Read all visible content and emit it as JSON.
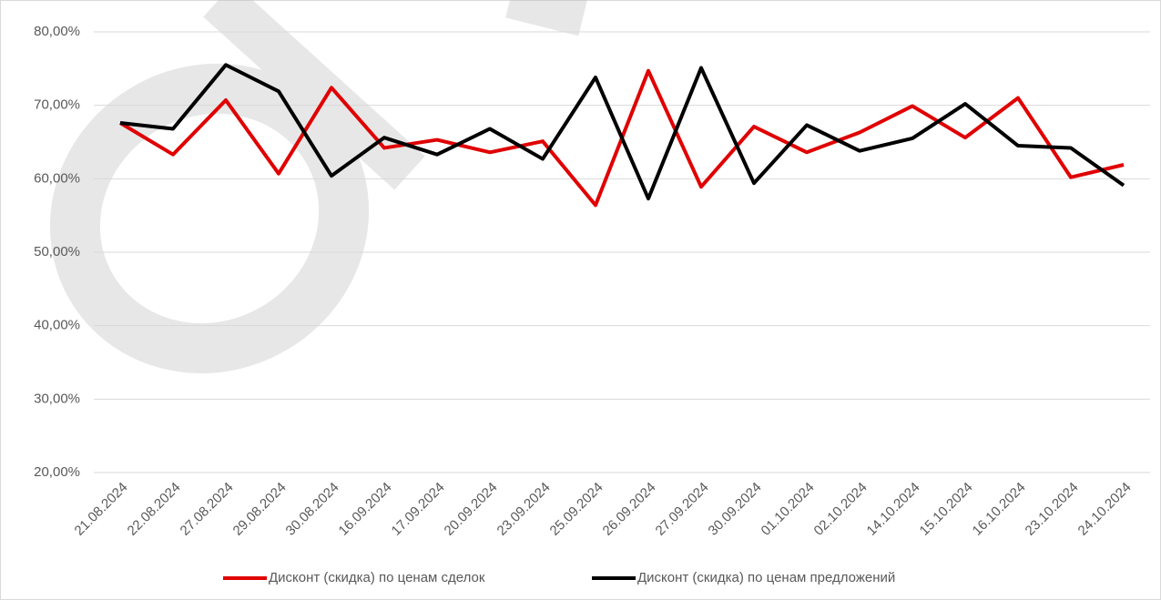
{
  "chart_data": {
    "type": "line",
    "categories": [
      "21.08.2024",
      "22.08.2024",
      "27.08.2024",
      "29.08.2024",
      "30.08.2024",
      "16.09.2024",
      "17.09.2024",
      "20.09.2024",
      "23.09.2024",
      "25.09.2024",
      "26.09.2024",
      "27.09.2024",
      "30.09.2024",
      "01.10.2024",
      "02.10.2024",
      "14.10.2024",
      "15.10.2024",
      "16.10.2024",
      "23.10.2024",
      "24.10.2024"
    ],
    "series": [
      {
        "name": "Дисконт (скидка) по ценам сделок",
        "color": "#e00000",
        "values": [
          67.6,
          63.3,
          70.7,
          60.7,
          72.4,
          64.2,
          65.3,
          63.6,
          65.1,
          56.4,
          74.7,
          58.9,
          67.1,
          63.6,
          66.3,
          69.9,
          65.6,
          71.0,
          60.2,
          61.9
        ]
      },
      {
        "name": "Дисконт (скидка) по ценам предложений",
        "color": "#000000",
        "values": [
          67.6,
          66.8,
          75.5,
          71.9,
          60.4,
          65.6,
          63.3,
          66.8,
          62.7,
          73.8,
          57.3,
          75.1,
          59.4,
          67.3,
          63.8,
          65.5,
          70.2,
          64.5,
          64.2,
          59.1
        ]
      }
    ],
    "ylim": [
      20,
      80
    ],
    "yticks": [
      {
        "value": 20,
        "label": "20,00%"
      },
      {
        "value": 30,
        "label": "30,00%"
      },
      {
        "value": 40,
        "label": "40,00%"
      },
      {
        "value": 50,
        "label": "50,00%"
      },
      {
        "value": 60,
        "label": "60,00%"
      },
      {
        "value": 70,
        "label": "70,00%"
      },
      {
        "value": 80,
        "label": "80,00%"
      }
    ],
    "grid": true
  }
}
